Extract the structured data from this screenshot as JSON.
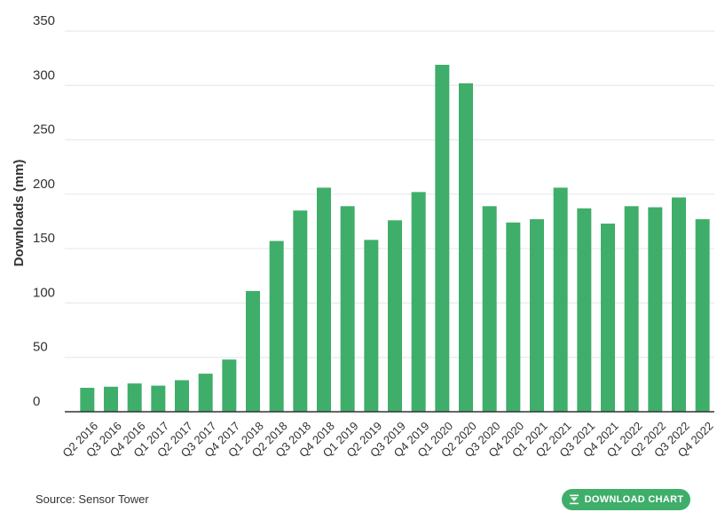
{
  "chart_data": {
    "type": "bar",
    "ylabel": "Downloads (mm)",
    "xlabel": "",
    "ylim": [
      0,
      350
    ],
    "yticks": [
      0,
      50,
      100,
      150,
      200,
      250,
      300,
      350
    ],
    "grid": true,
    "color": "#3fae6a",
    "categories": [
      "Q2 2016",
      "Q3 2016",
      "Q4 2016",
      "Q1 2017",
      "Q2 2017",
      "Q3 2017",
      "Q4 2017",
      "Q1 2018",
      "Q2 2018",
      "Q3 2018",
      "Q4 2018",
      "Q1 2019",
      "Q2 2019",
      "Q3 2019",
      "Q4 2019",
      "Q1 2020",
      "Q2 2020",
      "Q3 2020",
      "Q4 2020",
      "Q1 2021",
      "Q2 2021",
      "Q3 2021",
      "Q4 2021",
      "Q1 2022",
      "Q2 2022",
      "Q3 2022",
      "Q4 2022"
    ],
    "values": [
      22,
      23,
      26,
      24,
      29,
      35,
      48,
      111,
      157,
      185,
      206,
      189,
      158,
      176,
      202,
      319,
      302,
      189,
      174,
      177,
      206,
      187,
      173,
      189,
      188,
      197,
      177
    ]
  },
  "footer": {
    "source": "Source: Sensor Tower",
    "download_label": "DOWNLOAD CHART"
  }
}
